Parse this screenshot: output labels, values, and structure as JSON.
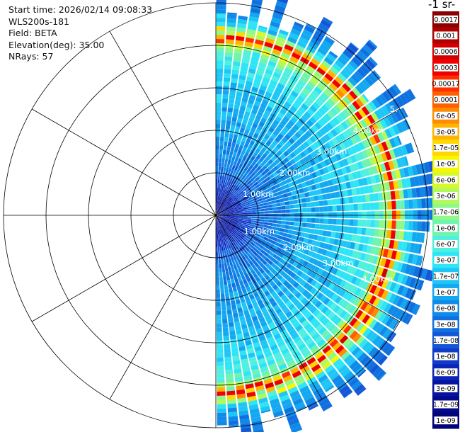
{
  "header": {
    "start_time": "Start time: 2026/02/14 09:08:33",
    "instrument": "WLS200s-181",
    "field": "Field: BETA",
    "elevation": "Elevation(deg): 35.00",
    "nrays": "NRays: 57"
  },
  "colorbar": {
    "title_visible": "-1 sr-",
    "labels": [
      "0.0017",
      "0.001",
      "0.0006",
      "0.0003",
      "0.00017",
      "0.0001",
      "6e-05",
      "3e-05",
      "1.7e-05",
      "1e-05",
      "6e-06",
      "3e-06",
      "1.7e-06",
      "1e-06",
      "6e-07",
      "3e-07",
      "1.7e-07",
      "1e-07",
      "6e-08",
      "3e-08",
      "1.7e-08",
      "1e-08",
      "6e-09",
      "3e-09",
      "1.7e-09",
      "1e-09"
    ],
    "colors": [
      "#8b0000",
      "#b00000",
      "#d40000",
      "#f00000",
      "#ff3000",
      "#ff6000",
      "#ff8c00",
      "#ffb400",
      "#ffd800",
      "#f7f700",
      "#d9f82c",
      "#b3f95a",
      "#8ef986",
      "#6ff3b0",
      "#4ff0e0",
      "#2ee5f5",
      "#1ec6f5",
      "#13a8f0",
      "#0f8ae8",
      "#1070e0",
      "#1457d6",
      "#103cc8",
      "#0a25b8",
      "#0613a0",
      "#04088a",
      "#020478"
    ]
  },
  "chart_data": {
    "type": "heatmap",
    "projection": "polar",
    "field": "BETA",
    "units_fragment": "-1 sr-",
    "n_rays": 57,
    "elevation_deg": 35.0,
    "azimuth_range_deg": [
      0,
      180
    ],
    "range_rings_labels": [
      "1.00km",
      "2.00km",
      "3.00km",
      "4.00km",
      "5."
    ],
    "range_rings_km": [
      1,
      2,
      3,
      4,
      5
    ],
    "max_range_km": 5.0,
    "color_scale": "log",
    "value_range": [
      1e-09,
      0.0017
    ],
    "profile": [
      {
        "range_km": 0.3,
        "beta": 3e-09
      },
      {
        "range_km": 1.0,
        "beta": 3e-08
      },
      {
        "range_km": 2.0,
        "beta": 1e-07
      },
      {
        "range_km": 3.0,
        "beta": 1.7e-07
      },
      {
        "range_km": 3.8,
        "beta": 6e-07
      },
      {
        "range_km": 4.0,
        "beta": 3e-06
      },
      {
        "range_km": 4.1,
        "beta": 6e-05
      },
      {
        "range_km": 4.2,
        "beta": 0.0003
      },
      {
        "range_km": 4.4,
        "beta": 3e-07
      },
      {
        "range_km": 4.8,
        "beta": 6e-08
      },
      {
        "range_km": 5.0,
        "beta": 3e-08
      }
    ]
  }
}
